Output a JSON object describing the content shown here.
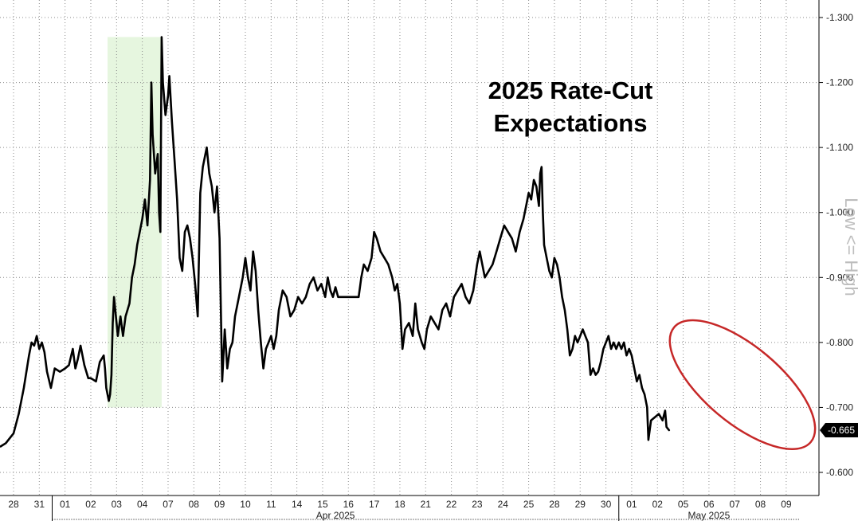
{
  "chart_data": {
    "type": "line",
    "title_lines": [
      "2025 Rate-Cut",
      "Expectations"
    ],
    "ylabel": "Low <= High",
    "y_axis": {
      "position": "right",
      "reversed": true,
      "ylim": [
        -0.555,
        -1.31
      ],
      "ticks": [
        -1.3,
        -1.2,
        -1.1,
        -1.0,
        -0.9,
        -0.8,
        -0.7,
        -0.6
      ],
      "tick_labels": [
        "-1.300",
        "-1.200",
        "-1.100",
        "-1.000",
        "-0.900",
        "-0.800",
        "-0.700",
        "-0.600"
      ]
    },
    "x_axis": {
      "categories": [
        "28",
        "31",
        "01",
        "02",
        "03",
        "04",
        "07",
        "08",
        "09",
        "10",
        "11",
        "14",
        "15",
        "16",
        "17",
        "18",
        "21",
        "22",
        "23",
        "24",
        "25",
        "28",
        "29",
        "30",
        "01",
        "02",
        "05",
        "06",
        "07",
        "08",
        "09"
      ],
      "months": [
        {
          "label": "Apr 2025",
          "start_index": 2,
          "end_index": 23
        },
        {
          "label": "May 2025",
          "start_index": 24,
          "end_index": 30
        }
      ]
    },
    "grid": true,
    "highlight_band": {
      "x_start": 3.65,
      "x_end": 5.75,
      "y_range": [
        -0.7,
        -1.27
      ],
      "color": "#e6f6df"
    },
    "ellipse_annotation": {
      "x_range": [
        25.6,
        31.0
      ],
      "y_range": [
        -0.64,
        -0.83
      ],
      "color": "#c62828"
    },
    "last_value": {
      "value": -0.665,
      "label": "-0.665"
    },
    "series": [
      {
        "color": "#000000",
        "points": [
          [
            -0.5,
            -0.64
          ],
          [
            -0.3,
            -0.645
          ],
          [
            -0.1,
            -0.655
          ],
          [
            0.0,
            -0.66
          ],
          [
            0.2,
            -0.69
          ],
          [
            0.4,
            -0.73
          ],
          [
            0.6,
            -0.78
          ],
          [
            0.7,
            -0.8
          ],
          [
            0.8,
            -0.795
          ],
          [
            0.9,
            -0.81
          ],
          [
            1.0,
            -0.79
          ],
          [
            1.1,
            -0.8
          ],
          [
            1.2,
            -0.785
          ],
          [
            1.3,
            -0.755
          ],
          [
            1.45,
            -0.73
          ],
          [
            1.6,
            -0.76
          ],
          [
            1.8,
            -0.755
          ],
          [
            2.0,
            -0.76
          ],
          [
            2.15,
            -0.765
          ],
          [
            2.3,
            -0.79
          ],
          [
            2.4,
            -0.76
          ],
          [
            2.5,
            -0.775
          ],
          [
            2.6,
            -0.795
          ],
          [
            2.75,
            -0.765
          ],
          [
            2.9,
            -0.745
          ],
          [
            3.0,
            -0.745
          ],
          [
            3.2,
            -0.74
          ],
          [
            3.35,
            -0.77
          ],
          [
            3.5,
            -0.78
          ],
          [
            3.55,
            -0.76
          ],
          [
            3.6,
            -0.73
          ],
          [
            3.7,
            -0.71
          ],
          [
            3.75,
            -0.72
          ],
          [
            3.8,
            -0.75
          ],
          [
            3.85,
            -0.83
          ],
          [
            3.9,
            -0.87
          ],
          [
            3.95,
            -0.85
          ],
          [
            4.05,
            -0.81
          ],
          [
            4.15,
            -0.84
          ],
          [
            4.25,
            -0.81
          ],
          [
            4.35,
            -0.84
          ],
          [
            4.5,
            -0.86
          ],
          [
            4.6,
            -0.9
          ],
          [
            4.7,
            -0.92
          ],
          [
            4.8,
            -0.95
          ],
          [
            4.9,
            -0.97
          ],
          [
            5.0,
            -0.99
          ],
          [
            5.1,
            -1.02
          ],
          [
            5.2,
            -0.98
          ],
          [
            5.3,
            -1.05
          ],
          [
            5.35,
            -1.2
          ],
          [
            5.4,
            -1.12
          ],
          [
            5.5,
            -1.06
          ],
          [
            5.6,
            -1.09
          ],
          [
            5.65,
            -1.0
          ],
          [
            5.7,
            -0.97
          ],
          [
            5.75,
            -1.27
          ],
          [
            5.8,
            -1.2
          ],
          [
            5.9,
            -1.15
          ],
          [
            6.0,
            -1.18
          ],
          [
            6.05,
            -1.21
          ],
          [
            6.15,
            -1.14
          ],
          [
            6.25,
            -1.08
          ],
          [
            6.35,
            -1.02
          ],
          [
            6.45,
            -0.93
          ],
          [
            6.55,
            -0.91
          ],
          [
            6.65,
            -0.97
          ],
          [
            6.75,
            -0.98
          ],
          [
            6.85,
            -0.96
          ],
          [
            6.95,
            -0.93
          ],
          [
            7.05,
            -0.89
          ],
          [
            7.15,
            -0.84
          ],
          [
            7.25,
            -1.03
          ],
          [
            7.35,
            -1.07
          ],
          [
            7.5,
            -1.1
          ],
          [
            7.6,
            -1.06
          ],
          [
            7.7,
            -1.04
          ],
          [
            7.8,
            -1.0
          ],
          [
            7.9,
            -1.04
          ],
          [
            8.0,
            -0.96
          ],
          [
            8.1,
            -0.74
          ],
          [
            8.2,
            -0.82
          ],
          [
            8.3,
            -0.76
          ],
          [
            8.4,
            -0.79
          ],
          [
            8.5,
            -0.8
          ],
          [
            8.6,
            -0.84
          ],
          [
            8.75,
            -0.87
          ],
          [
            8.9,
            -0.9
          ],
          [
            9.0,
            -0.93
          ],
          [
            9.1,
            -0.9
          ],
          [
            9.2,
            -0.88
          ],
          [
            9.3,
            -0.94
          ],
          [
            9.4,
            -0.91
          ],
          [
            9.5,
            -0.85
          ],
          [
            9.6,
            -0.8
          ],
          [
            9.7,
            -0.76
          ],
          [
            9.8,
            -0.79
          ],
          [
            9.9,
            -0.8
          ],
          [
            10.0,
            -0.81
          ],
          [
            10.1,
            -0.79
          ],
          [
            10.2,
            -0.81
          ],
          [
            10.3,
            -0.85
          ],
          [
            10.45,
            -0.88
          ],
          [
            10.6,
            -0.87
          ],
          [
            10.75,
            -0.84
          ],
          [
            10.9,
            -0.85
          ],
          [
            11.05,
            -0.87
          ],
          [
            11.2,
            -0.86
          ],
          [
            11.35,
            -0.87
          ],
          [
            11.5,
            -0.89
          ],
          [
            11.65,
            -0.9
          ],
          [
            11.8,
            -0.88
          ],
          [
            11.95,
            -0.89
          ],
          [
            12.1,
            -0.87
          ],
          [
            12.2,
            -0.9
          ],
          [
            12.3,
            -0.88
          ],
          [
            12.4,
            -0.87
          ],
          [
            12.5,
            -0.885
          ],
          [
            12.6,
            -0.87
          ],
          [
            13.0,
            -0.87
          ],
          [
            13.4,
            -0.87
          ],
          [
            13.5,
            -0.9
          ],
          [
            13.6,
            -0.92
          ],
          [
            13.75,
            -0.91
          ],
          [
            13.9,
            -0.93
          ],
          [
            14.0,
            -0.97
          ],
          [
            14.1,
            -0.96
          ],
          [
            14.25,
            -0.94
          ],
          [
            14.4,
            -0.93
          ],
          [
            14.55,
            -0.92
          ],
          [
            14.7,
            -0.9
          ],
          [
            14.8,
            -0.88
          ],
          [
            14.9,
            -0.89
          ],
          [
            15.0,
            -0.86
          ],
          [
            15.1,
            -0.79
          ],
          [
            15.2,
            -0.82
          ],
          [
            15.35,
            -0.83
          ],
          [
            15.5,
            -0.81
          ],
          [
            15.6,
            -0.86
          ],
          [
            15.7,
            -0.82
          ],
          [
            15.85,
            -0.8
          ],
          [
            15.95,
            -0.79
          ],
          [
            16.05,
            -0.82
          ],
          [
            16.2,
            -0.84
          ],
          [
            16.35,
            -0.83
          ],
          [
            16.5,
            -0.82
          ],
          [
            16.65,
            -0.85
          ],
          [
            16.8,
            -0.86
          ],
          [
            16.95,
            -0.84
          ],
          [
            17.1,
            -0.87
          ],
          [
            17.25,
            -0.88
          ],
          [
            17.4,
            -0.89
          ],
          [
            17.55,
            -0.87
          ],
          [
            17.7,
            -0.86
          ],
          [
            17.85,
            -0.88
          ],
          [
            18.0,
            -0.92
          ],
          [
            18.1,
            -0.94
          ],
          [
            18.2,
            -0.92
          ],
          [
            18.3,
            -0.9
          ],
          [
            18.45,
            -0.91
          ],
          [
            18.6,
            -0.92
          ],
          [
            18.75,
            -0.94
          ],
          [
            18.9,
            -0.96
          ],
          [
            19.05,
            -0.98
          ],
          [
            19.2,
            -0.97
          ],
          [
            19.35,
            -0.96
          ],
          [
            19.5,
            -0.94
          ],
          [
            19.65,
            -0.97
          ],
          [
            19.8,
            -0.99
          ],
          [
            19.9,
            -1.01
          ],
          [
            20.0,
            -1.03
          ],
          [
            20.1,
            -1.02
          ],
          [
            20.2,
            -1.05
          ],
          [
            20.3,
            -1.04
          ],
          [
            20.4,
            -1.01
          ],
          [
            20.45,
            -1.06
          ],
          [
            20.5,
            -1.07
          ],
          [
            20.55,
            -1.0
          ],
          [
            20.6,
            -0.95
          ],
          [
            20.7,
            -0.93
          ],
          [
            20.8,
            -0.91
          ],
          [
            20.9,
            -0.9
          ],
          [
            21.0,
            -0.93
          ],
          [
            21.1,
            -0.92
          ],
          [
            21.2,
            -0.9
          ],
          [
            21.3,
            -0.87
          ],
          [
            21.4,
            -0.85
          ],
          [
            21.5,
            -0.82
          ],
          [
            21.6,
            -0.78
          ],
          [
            21.7,
            -0.79
          ],
          [
            21.8,
            -0.81
          ],
          [
            21.9,
            -0.8
          ],
          [
            22.0,
            -0.81
          ],
          [
            22.1,
            -0.82
          ],
          [
            22.2,
            -0.81
          ],
          [
            22.3,
            -0.8
          ],
          [
            22.4,
            -0.75
          ],
          [
            22.5,
            -0.76
          ],
          [
            22.6,
            -0.75
          ],
          [
            22.7,
            -0.755
          ],
          [
            22.8,
            -0.77
          ],
          [
            22.9,
            -0.79
          ],
          [
            23.0,
            -0.8
          ],
          [
            23.1,
            -0.81
          ],
          [
            23.2,
            -0.79
          ],
          [
            23.3,
            -0.8
          ],
          [
            23.4,
            -0.79
          ],
          [
            23.5,
            -0.8
          ],
          [
            23.6,
            -0.79
          ],
          [
            23.7,
            -0.8
          ],
          [
            23.8,
            -0.78
          ],
          [
            23.9,
            -0.79
          ],
          [
            24.0,
            -0.78
          ],
          [
            24.1,
            -0.76
          ],
          [
            24.2,
            -0.74
          ],
          [
            24.3,
            -0.75
          ],
          [
            24.4,
            -0.73
          ],
          [
            24.5,
            -0.72
          ],
          [
            24.6,
            -0.7
          ],
          [
            24.65,
            -0.65
          ],
          [
            24.75,
            -0.68
          ],
          [
            24.9,
            -0.685
          ],
          [
            25.05,
            -0.69
          ],
          [
            25.2,
            -0.68
          ],
          [
            25.3,
            -0.695
          ],
          [
            25.35,
            -0.67
          ],
          [
            25.45,
            -0.665
          ]
        ]
      }
    ]
  }
}
